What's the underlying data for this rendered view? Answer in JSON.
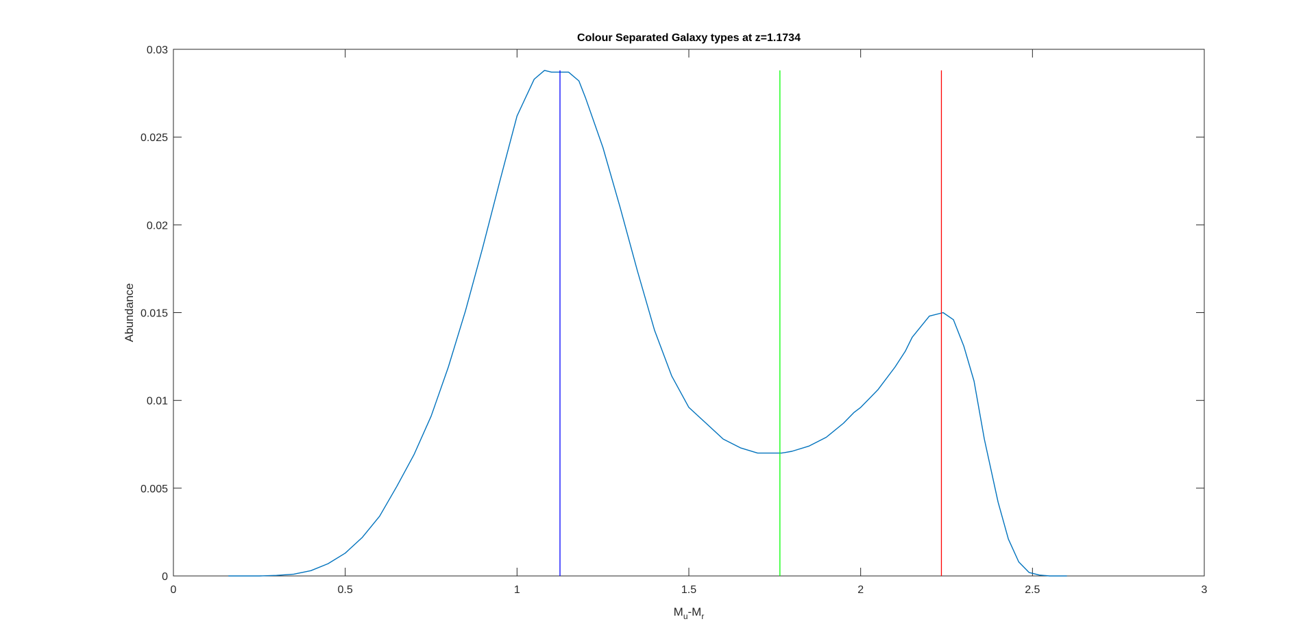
{
  "chart_data": {
    "type": "line",
    "title": "Colour Separated Galaxy types at z=1.1734",
    "xlabel": {
      "base1": "M",
      "sub1": "u",
      "sep": "-M",
      "sub2": "r"
    },
    "ylabel": "Abundance",
    "xlim": [
      0,
      3
    ],
    "ylim": [
      0,
      0.03
    ],
    "xticks": [
      0,
      0.5,
      1,
      1.5,
      2,
      2.5,
      3
    ],
    "xtick_labels": [
      "0",
      "0.5",
      "1",
      "1.5",
      "2",
      "2.5",
      "3"
    ],
    "yticks": [
      0,
      0.005,
      0.01,
      0.015,
      0.02,
      0.025,
      0.03
    ],
    "ytick_labels": [
      "0",
      "0.005",
      "0.01",
      "0.015",
      "0.02",
      "0.025",
      "0.03"
    ],
    "grid": false,
    "series": [
      {
        "color": "#0072BD",
        "x": [
          0.16,
          0.2,
          0.25,
          0.3,
          0.35,
          0.4,
          0.45,
          0.5,
          0.55,
          0.6,
          0.65,
          0.7,
          0.75,
          0.8,
          0.85,
          0.9,
          0.95,
          1.0,
          1.05,
          1.08,
          1.1,
          1.125,
          1.15,
          1.18,
          1.2,
          1.25,
          1.3,
          1.35,
          1.4,
          1.45,
          1.5,
          1.55,
          1.6,
          1.65,
          1.7,
          1.75,
          1.77,
          1.8,
          1.85,
          1.9,
          1.95,
          1.98,
          2.0,
          2.05,
          2.1,
          2.13,
          2.15,
          2.2,
          2.24,
          2.27,
          2.3,
          2.33,
          2.36,
          2.4,
          2.43,
          2.46,
          2.49,
          2.52,
          2.55,
          2.6
        ],
        "y": [
          0.0,
          0.0,
          0.0,
          3e-05,
          0.0001,
          0.0003,
          0.0007,
          0.0013,
          0.0022,
          0.0034,
          0.0051,
          0.0069,
          0.0091,
          0.0119,
          0.0151,
          0.0187,
          0.0225,
          0.0262,
          0.0283,
          0.0288,
          0.0287,
          0.0287,
          0.0287,
          0.0282,
          0.0272,
          0.0244,
          0.021,
          0.0174,
          0.014,
          0.0114,
          0.0096,
          0.0087,
          0.0078,
          0.0073,
          0.007,
          0.007,
          0.007,
          0.0071,
          0.0074,
          0.0079,
          0.0087,
          0.0093,
          0.0096,
          0.0106,
          0.0119,
          0.0128,
          0.0136,
          0.0148,
          0.015,
          0.0146,
          0.0131,
          0.0111,
          0.0078,
          0.0042,
          0.0021,
          0.0008,
          0.0002,
          5e-05,
          0.0,
          0.0
        ]
      }
    ],
    "vlines": [
      {
        "x": 1.125,
        "y": [
          0,
          0.0288
        ],
        "color": "#0000ff"
      },
      {
        "x": 1.765,
        "y": [
          0,
          0.0288
        ],
        "color": "#00ff00"
      },
      {
        "x": 2.235,
        "y": [
          0,
          0.0288
        ],
        "color": "#ff0000"
      }
    ]
  }
}
